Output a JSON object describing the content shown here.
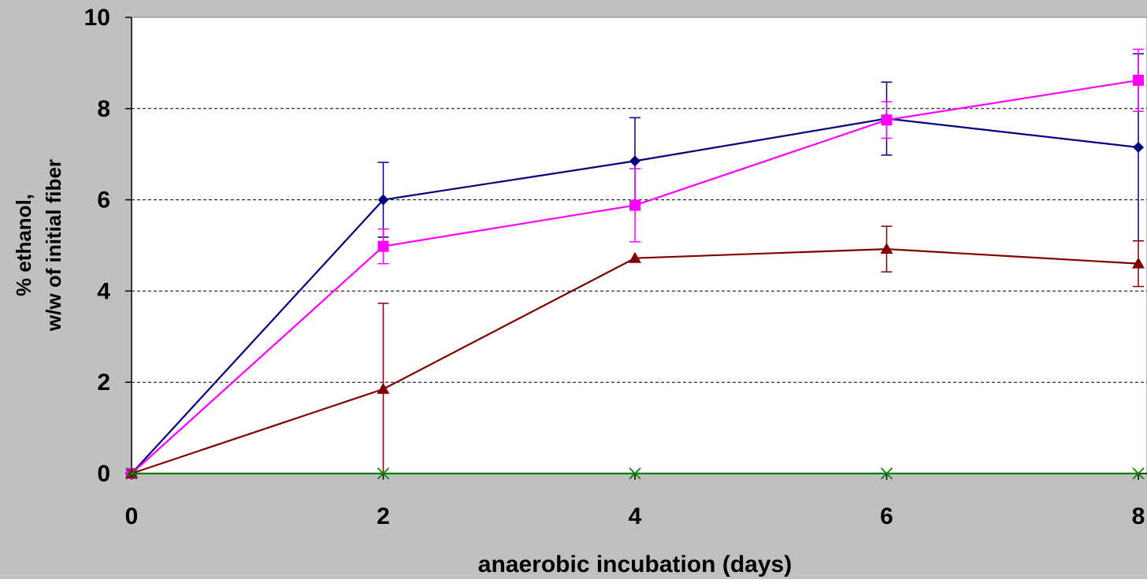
{
  "chart_data": {
    "type": "line",
    "title": "",
    "xlabel": "anaerobic incubation (days)",
    "ylabel_lines": [
      "% ethanol,",
      "w/w of initial fiber"
    ],
    "xlim": [
      0,
      8
    ],
    "ylim": [
      0,
      10
    ],
    "x_ticks": [
      0,
      2,
      4,
      6,
      8
    ],
    "y_ticks": [
      0,
      2,
      4,
      6,
      8,
      10
    ],
    "grid": "horizontal dashed at 2, 4, 6, 8",
    "legend": "none",
    "series": [
      {
        "marker": "diamond",
        "color": "#000080",
        "x": [
          0,
          2,
          4,
          6,
          8
        ],
        "y": [
          0,
          6.0,
          6.85,
          7.78,
          7.15
        ],
        "err": [
          0,
          0.82,
          0.95,
          0.8,
          2.05
        ]
      },
      {
        "marker": "square",
        "color": "#ff00ff",
        "x": [
          0,
          2,
          4,
          6,
          8
        ],
        "y": [
          0,
          4.98,
          5.88,
          7.75,
          8.62
        ],
        "err": [
          0,
          0.38,
          0.8,
          0.4,
          0.68
        ]
      },
      {
        "marker": "triangle",
        "color": "#800000",
        "x": [
          0,
          2,
          4,
          6,
          8
        ],
        "y": [
          0,
          1.85,
          4.72,
          4.92,
          4.6
        ],
        "err": [
          0,
          1.88,
          0,
          0.5,
          0.5
        ]
      },
      {
        "marker": "x",
        "color": "#008000",
        "x": [
          0,
          2,
          4,
          6,
          8
        ],
        "y": [
          0,
          0,
          0,
          0,
          0
        ],
        "err": [
          0,
          0,
          0,
          0,
          0
        ]
      }
    ]
  }
}
